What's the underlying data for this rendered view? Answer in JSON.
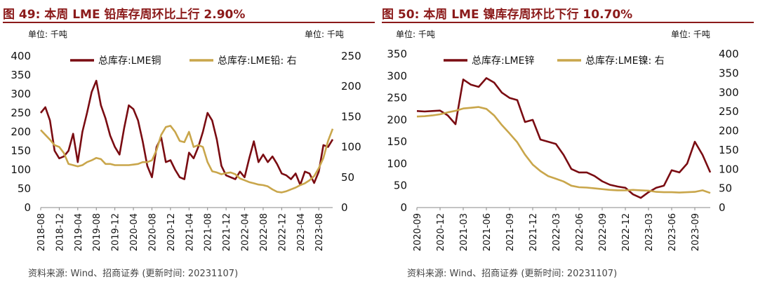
{
  "colors": {
    "dark_red": "#7a0c12",
    "gold": "#c9a64b",
    "title_red": "#8b1a1a"
  },
  "charts": [
    {
      "title": "图 49:  本周 LME 铅库存周环比上行 2.90%",
      "unit_left": "单位:  千吨",
      "unit_right": "单位:  千吨",
      "source": "资料来源:  Wind、招商证券 (更新时间: 20231107)"
    },
    {
      "title": "图 50:  本周 LME 镍库存周环比下行 10.70%",
      "unit_left": "单位:  千吨",
      "unit_right": "单位:  千吨",
      "source": "资料来源:  Wind、招商证券 (更新时间: 20231107)"
    }
  ],
  "chart_data": [
    {
      "type": "line",
      "ylim_left": [
        0,
        400
      ],
      "yticks_left": [
        0,
        50,
        100,
        150,
        200,
        250,
        300,
        350,
        400
      ],
      "ylim_right": [
        0,
        250
      ],
      "yticks_right": [
        0,
        50,
        100,
        150,
        200,
        250
      ],
      "x_tick_labels": [
        "2018-08",
        "2018-12",
        "2019-04",
        "2019-08",
        "2019-12",
        "2020-04",
        "2020-08",
        "2020-12",
        "2021-04",
        "2021-08",
        "2021-12",
        "2022-04",
        "2022-08",
        "2022-12",
        "2023-04",
        "2023-08"
      ],
      "x_range": [
        "2018-08",
        "2023-11"
      ],
      "legend_position": "top",
      "series": [
        {
          "name": "总库存:LME铜",
          "axis": "left",
          "color": "#7a0c12",
          "points": [
            [
              "2018-08",
              250
            ],
            [
              "2018-09",
              265
            ],
            [
              "2018-10",
              230
            ],
            [
              "2018-11",
              150
            ],
            [
              "2018-12",
              130
            ],
            [
              "2019-01",
              135
            ],
            [
              "2019-02",
              150
            ],
            [
              "2019-03",
              195
            ],
            [
              "2019-04",
              120
            ],
            [
              "2019-05",
              200
            ],
            [
              "2019-06",
              250
            ],
            [
              "2019-07",
              305
            ],
            [
              "2019-08",
              335
            ],
            [
              "2019-09",
              270
            ],
            [
              "2019-10",
              235
            ],
            [
              "2019-11",
              190
            ],
            [
              "2019-12",
              160
            ],
            [
              "2020-01",
              140
            ],
            [
              "2020-02",
              210
            ],
            [
              "2020-03",
              270
            ],
            [
              "2020-04",
              260
            ],
            [
              "2020-05",
              230
            ],
            [
              "2020-06",
              175
            ],
            [
              "2020-07",
              110
            ],
            [
              "2020-08",
              80
            ],
            [
              "2020-09",
              160
            ],
            [
              "2020-10",
              185
            ],
            [
              "2020-11",
              120
            ],
            [
              "2020-12",
              125
            ],
            [
              "2021-01",
              100
            ],
            [
              "2021-02",
              80
            ],
            [
              "2021-03",
              75
            ],
            [
              "2021-04",
              145
            ],
            [
              "2021-05",
              130
            ],
            [
              "2021-06",
              160
            ],
            [
              "2021-07",
              200
            ],
            [
              "2021-08",
              250
            ],
            [
              "2021-09",
              230
            ],
            [
              "2021-10",
              180
            ],
            [
              "2021-11",
              110
            ],
            [
              "2021-12",
              85
            ],
            [
              "2022-01",
              80
            ],
            [
              "2022-02",
              75
            ],
            [
              "2022-03",
              95
            ],
            [
              "2022-04",
              80
            ],
            [
              "2022-05",
              130
            ],
            [
              "2022-06",
              175
            ],
            [
              "2022-07",
              120
            ],
            [
              "2022-08",
              140
            ],
            [
              "2022-09",
              120
            ],
            [
              "2022-10",
              135
            ],
            [
              "2022-11",
              115
            ],
            [
              "2022-12",
              90
            ],
            [
              "2023-01",
              85
            ],
            [
              "2023-02",
              75
            ],
            [
              "2023-03",
              90
            ],
            [
              "2023-04",
              60
            ],
            [
              "2023-05",
              95
            ],
            [
              "2023-06",
              90
            ],
            [
              "2023-07",
              65
            ],
            [
              "2023-08",
              95
            ],
            [
              "2023-09",
              165
            ],
            [
              "2023-10",
              160
            ],
            [
              "2023-11",
              180
            ]
          ]
        },
        {
          "name": "总库存:LME铅:  右",
          "axis": "right",
          "color": "#c9a64b",
          "points": [
            [
              "2018-08",
              128
            ],
            [
              "2018-09",
              120
            ],
            [
              "2018-10",
              112
            ],
            [
              "2018-11",
              103
            ],
            [
              "2018-12",
              100
            ],
            [
              "2019-01",
              90
            ],
            [
              "2019-02",
              72
            ],
            [
              "2019-03",
              70
            ],
            [
              "2019-04",
              68
            ],
            [
              "2019-05",
              70
            ],
            [
              "2019-06",
              75
            ],
            [
              "2019-07",
              78
            ],
            [
              "2019-08",
              82
            ],
            [
              "2019-09",
              80
            ],
            [
              "2019-10",
              72
            ],
            [
              "2019-11",
              72
            ],
            [
              "2019-12",
              70
            ],
            [
              "2020-01",
              70
            ],
            [
              "2020-02",
              70
            ],
            [
              "2020-03",
              70
            ],
            [
              "2020-04",
              71
            ],
            [
              "2020-05",
              72
            ],
            [
              "2020-06",
              75
            ],
            [
              "2020-07",
              75
            ],
            [
              "2020-08",
              78
            ],
            [
              "2020-09",
              95
            ],
            [
              "2020-10",
              120
            ],
            [
              "2020-11",
              133
            ],
            [
              "2020-12",
              135
            ],
            [
              "2021-01",
              125
            ],
            [
              "2021-02",
              110
            ],
            [
              "2021-03",
              108
            ],
            [
              "2021-04",
              125
            ],
            [
              "2021-05",
              100
            ],
            [
              "2021-06",
              103
            ],
            [
              "2021-07",
              100
            ],
            [
              "2021-08",
              75
            ],
            [
              "2021-09",
              60
            ],
            [
              "2021-10",
              58
            ],
            [
              "2021-11",
              55
            ],
            [
              "2021-12",
              57
            ],
            [
              "2022-01",
              58
            ],
            [
              "2022-02",
              55
            ],
            [
              "2022-03",
              48
            ],
            [
              "2022-04",
              45
            ],
            [
              "2022-05",
              42
            ],
            [
              "2022-06",
              40
            ],
            [
              "2022-07",
              38
            ],
            [
              "2022-08",
              37
            ],
            [
              "2022-09",
              35
            ],
            [
              "2022-10",
              30
            ],
            [
              "2022-11",
              26
            ],
            [
              "2022-12",
              25
            ],
            [
              "2023-01",
              27
            ],
            [
              "2023-02",
              30
            ],
            [
              "2023-03",
              33
            ],
            [
              "2023-04",
              37
            ],
            [
              "2023-05",
              40
            ],
            [
              "2023-06",
              45
            ],
            [
              "2023-07",
              52
            ],
            [
              "2023-08",
              65
            ],
            [
              "2023-09",
              82
            ],
            [
              "2023-10",
              110
            ],
            [
              "2023-11",
              130
            ]
          ]
        }
      ]
    },
    {
      "type": "line",
      "ylim_left": [
        0,
        350
      ],
      "yticks_left": [
        0,
        50,
        100,
        150,
        200,
        250,
        300,
        350
      ],
      "ylim_right": [
        0,
        400
      ],
      "yticks_right": [
        0,
        50,
        100,
        150,
        200,
        250,
        300,
        350,
        400
      ],
      "x_tick_labels": [
        "2020-09",
        "2020-12",
        "2021-03",
        "2021-06",
        "2021-09",
        "2021-12",
        "2022-03",
        "2022-06",
        "2022-09",
        "2022-12",
        "2023-03",
        "2023-06",
        "2023-09"
      ],
      "x_range": [
        "2020-09",
        "2023-11"
      ],
      "legend_position": "top",
      "series": [
        {
          "name": "总库存:LME锌",
          "axis": "left",
          "color": "#7a0c12",
          "points": [
            [
              "2020-09",
              220
            ],
            [
              "2020-10",
              219
            ],
            [
              "2020-11",
              220
            ],
            [
              "2020-12",
              221
            ],
            [
              "2021-01",
              210
            ],
            [
              "2021-02",
              190
            ],
            [
              "2021-03",
              292
            ],
            [
              "2021-04",
              280
            ],
            [
              "2021-05",
              275
            ],
            [
              "2021-06",
              295
            ],
            [
              "2021-07",
              285
            ],
            [
              "2021-08",
              262
            ],
            [
              "2021-09",
              250
            ],
            [
              "2021-10",
              245
            ],
            [
              "2021-11",
              195
            ],
            [
              "2021-12",
              200
            ],
            [
              "2022-01",
              155
            ],
            [
              "2022-02",
              150
            ],
            [
              "2022-03",
              145
            ],
            [
              "2022-04",
              120
            ],
            [
              "2022-05",
              88
            ],
            [
              "2022-06",
              80
            ],
            [
              "2022-07",
              80
            ],
            [
              "2022-08",
              72
            ],
            [
              "2022-09",
              60
            ],
            [
              "2022-10",
              52
            ],
            [
              "2022-11",
              48
            ],
            [
              "2022-12",
              45
            ],
            [
              "2023-01",
              30
            ],
            [
              "2023-02",
              22
            ],
            [
              "2023-03",
              35
            ],
            [
              "2023-04",
              45
            ],
            [
              "2023-05",
              50
            ],
            [
              "2023-06",
              85
            ],
            [
              "2023-07",
              80
            ],
            [
              "2023-08",
              100
            ],
            [
              "2023-09",
              150
            ],
            [
              "2023-10",
              120
            ],
            [
              "2023-11",
              80
            ]
          ]
        },
        {
          "name": "总库存:LME镍:  右",
          "axis": "right",
          "color": "#c9a64b",
          "points": [
            [
              "2020-09",
              237
            ],
            [
              "2020-10",
              238
            ],
            [
              "2020-11",
              240
            ],
            [
              "2020-12",
              243
            ],
            [
              "2021-01",
              248
            ],
            [
              "2021-02",
              252
            ],
            [
              "2021-03",
              258
            ],
            [
              "2021-04",
              260
            ],
            [
              "2021-05",
              262
            ],
            [
              "2021-06",
              257
            ],
            [
              "2021-07",
              240
            ],
            [
              "2021-08",
              215
            ],
            [
              "2021-09",
              193
            ],
            [
              "2021-10",
              170
            ],
            [
              "2021-11",
              138
            ],
            [
              "2021-12",
              112
            ],
            [
              "2022-01",
              95
            ],
            [
              "2022-02",
              82
            ],
            [
              "2022-03",
              75
            ],
            [
              "2022-04",
              68
            ],
            [
              "2022-05",
              57
            ],
            [
              "2022-06",
              53
            ],
            [
              "2022-07",
              52
            ],
            [
              "2022-08",
              50
            ],
            [
              "2022-09",
              48
            ],
            [
              "2022-10",
              46
            ],
            [
              "2022-11",
              45
            ],
            [
              "2022-12",
              45
            ],
            [
              "2023-01",
              46
            ],
            [
              "2023-02",
              45
            ],
            [
              "2023-03",
              44
            ],
            [
              "2023-04",
              41
            ],
            [
              "2023-05",
              40
            ],
            [
              "2023-06",
              40
            ],
            [
              "2023-07",
              39
            ],
            [
              "2023-08",
              40
            ],
            [
              "2023-09",
              41
            ],
            [
              "2023-10",
              45
            ],
            [
              "2023-11",
              38
            ]
          ]
        }
      ]
    }
  ]
}
